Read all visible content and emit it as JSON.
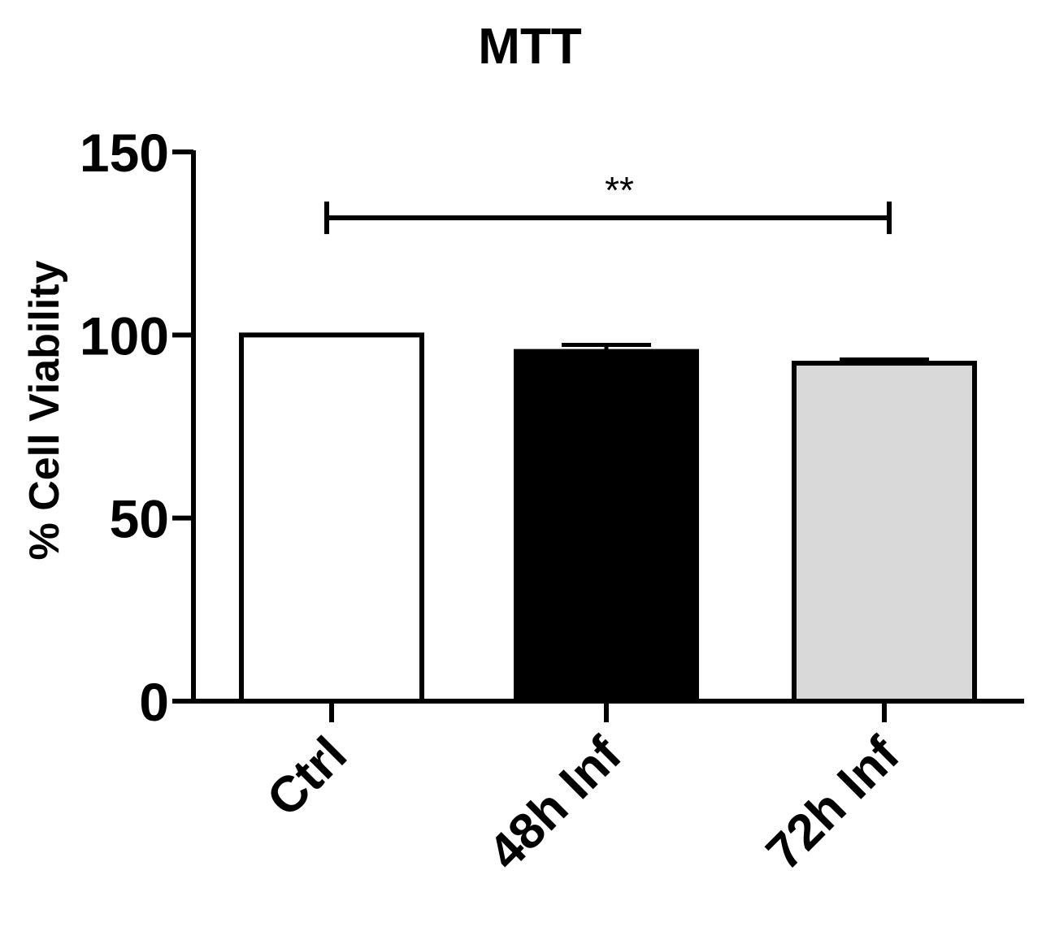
{
  "chart_data": {
    "type": "bar",
    "title": "MTT",
    "ylabel": "% Cell Viability",
    "xlabel": "",
    "categories": [
      "Ctrl",
      "48h Inf",
      "72h Inf"
    ],
    "values": [
      100,
      95.5,
      92.3
    ],
    "errors": [
      0,
      1.8,
      1.0
    ],
    "bar_colors": [
      "#ffffff",
      "#000000",
      "#d9d9d9"
    ],
    "ylim": [
      0,
      150
    ],
    "yticks": [
      0,
      50,
      100,
      150
    ],
    "ytick_labels": [
      "0",
      "50",
      "100",
      "150"
    ],
    "grid": false,
    "legend": "none",
    "significance": {
      "from": "Ctrl",
      "to": "72h Inf",
      "y": 132,
      "label": "**"
    }
  }
}
